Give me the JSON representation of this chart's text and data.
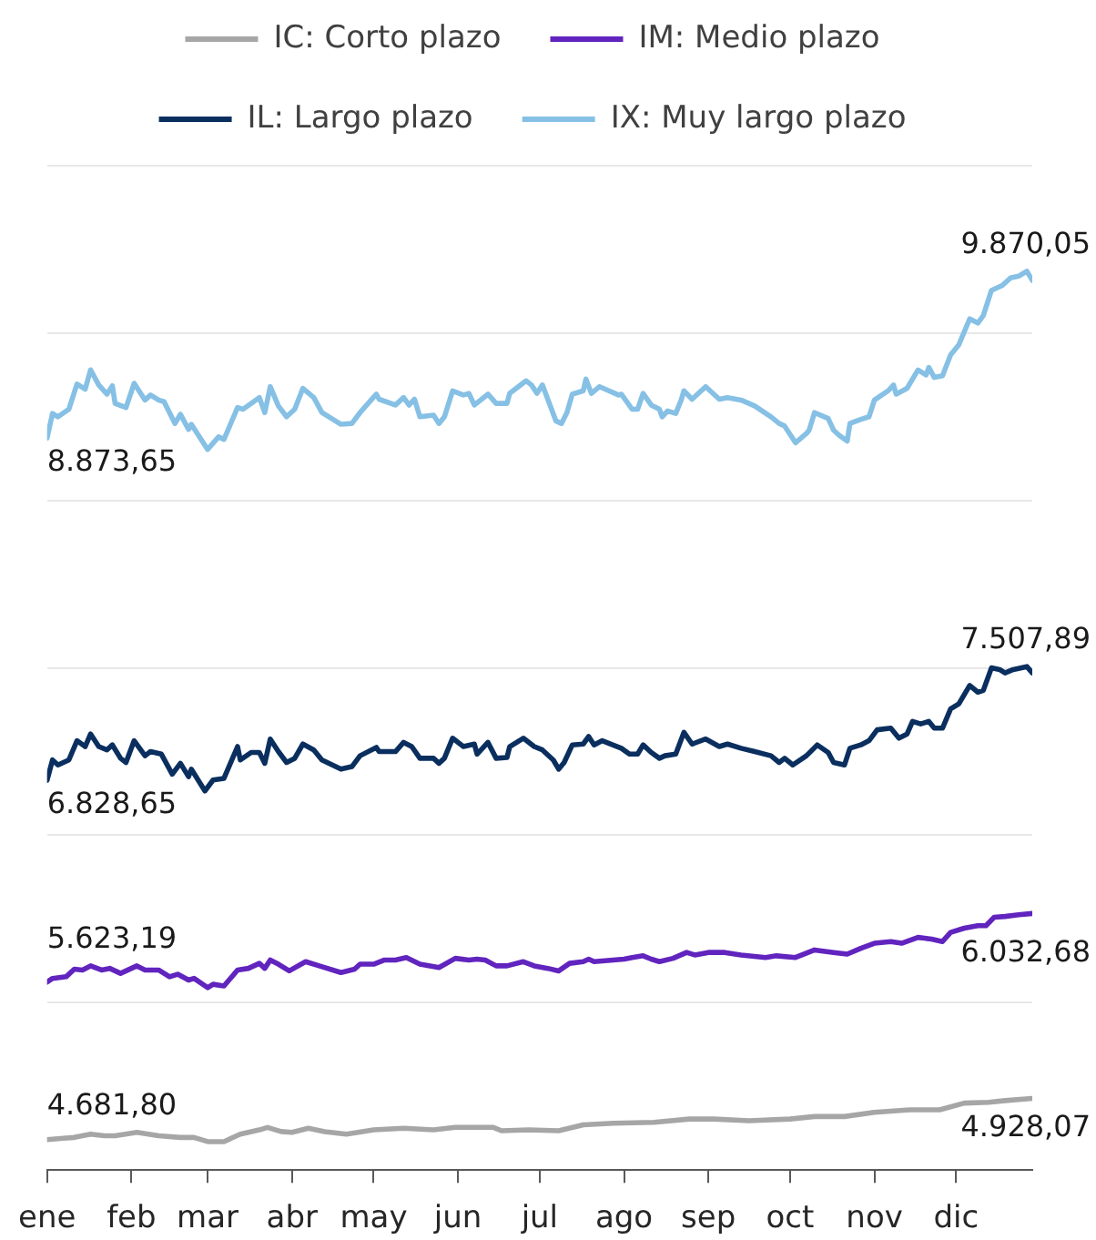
{
  "chart_data": {
    "type": "line",
    "legend": "top",
    "grid": "y",
    "marker": "none",
    "line_style": "solid",
    "tick_labels": "x",
    "xlim": [
      "--01-01",
      "--12-29"
    ],
    "xticks": [
      {
        "value": "--01-01",
        "label": "ene"
      },
      {
        "value": "--02-01",
        "label": "feb"
      },
      {
        "value": "--03-01",
        "label": "mar"
      },
      {
        "value": "--04-01",
        "label": "abr"
      },
      {
        "value": "--05-01",
        "label": "may"
      },
      {
        "value": "--06-01",
        "label": "jun"
      },
      {
        "value": "--07-01",
        "label": "jul"
      },
      {
        "value": "--08-01",
        "label": "ago"
      },
      {
        "value": "--09-01",
        "label": "sep"
      },
      {
        "value": "--10-01",
        "label": "oct"
      },
      {
        "value": "--11-01",
        "label": "nov"
      },
      {
        "value": "--12-01",
        "label": "dic"
      }
    ],
    "ylim": [
      4500,
      10500
    ],
    "yticks": [
      {
        "value": 4500,
        "label": null
      },
      {
        "value": 5500,
        "label": null
      },
      {
        "value": 6500,
        "label": null
      },
      {
        "value": 7500,
        "label": null
      },
      {
        "value": 8500,
        "label": null
      },
      {
        "value": 9500,
        "label": null
      },
      {
        "value": 10500,
        "label": null
      }
    ],
    "series": [
      {
        "name": "IC: Corto plazo",
        "color": "#a6a6a6",
        "x": [
          "--01-01",
          "--01-07",
          "--01-11",
          "--01-17",
          "--01-22",
          "--01-26",
          "--02-03",
          "--02-11",
          "--02-19",
          "--02-24",
          "--03-01",
          "--03-07",
          "--03-13",
          "--03-20",
          "--03-23",
          "--03-28",
          "--04-01",
          "--04-07",
          "--04-13",
          "--04-21",
          "--05-01",
          "--05-12",
          "--05-23",
          "--05-31",
          "--06-14",
          "--06-17",
          "--06-27",
          "--07-08",
          "--07-17",
          "--07-28",
          "--08-12",
          "--08-25",
          "--09-03",
          "--09-16",
          "--10-01",
          "--10-10",
          "--10-21",
          "--11-01",
          "--11-14",
          "--11-25",
          "--12-04",
          "--12-13",
          "--12-19",
          "--12-29"
        ],
        "values": [
          4681.8,
          4690,
          4695,
          4715,
          4705,
          4705,
          4725,
          4705,
          4695,
          4695,
          4670,
          4670,
          4715,
          4740,
          4755,
          4730,
          4725,
          4750,
          4730,
          4715,
          4740,
          4750,
          4740,
          4755,
          4755,
          4735,
          4740,
          4735,
          4770,
          4780,
          4785,
          4805,
          4805,
          4795,
          4805,
          4820,
          4820,
          4845,
          4860,
          4860,
          4900,
          4905,
          4915,
          4928.07
        ],
        "value_labels": [
          "4.681,80",
          null,
          null,
          null,
          null,
          null,
          null,
          null,
          null,
          null,
          null,
          null,
          null,
          null,
          null,
          null,
          null,
          null,
          null,
          null,
          null,
          null,
          null,
          null,
          null,
          null,
          null,
          null,
          null,
          null,
          null,
          null,
          null,
          null,
          null,
          null,
          null,
          null,
          null,
          null,
          null,
          null,
          null,
          "4.928,07"
        ]
      },
      {
        "name": "IM: Medio plazo",
        "color": "#6124be",
        "x": [
          "--01-01",
          "--01-03",
          "--01-08",
          "--01-11",
          "--01-14",
          "--01-17",
          "--01-21",
          "--01-24",
          "--01-28",
          "--02-03",
          "--02-06",
          "--02-11",
          "--02-15",
          "--02-18",
          "--02-22",
          "--02-24",
          "--03-01",
          "--03-03",
          "--03-07",
          "--03-12",
          "--03-16",
          "--03-20",
          "--03-22",
          "--03-24",
          "--03-27",
          "--03-31",
          "--04-06",
          "--04-11",
          "--04-19",
          "--04-24",
          "--04-26",
          "--05-01",
          "--05-05",
          "--05-09",
          "--05-13",
          "--05-18",
          "--05-25",
          "--05-31",
          "--06-05",
          "--06-08",
          "--06-11",
          "--06-15",
          "--06-19",
          "--06-25",
          "--06-29",
          "--07-04",
          "--07-08",
          "--07-12",
          "--07-17",
          "--07-19",
          "--07-21",
          "--07-28",
          "--08-01",
          "--08-04",
          "--08-08",
          "--08-11",
          "--08-14",
          "--08-19",
          "--08-24",
          "--08-27",
          "--09-01",
          "--09-07",
          "--09-13",
          "--09-22",
          "--09-26",
          "--10-03",
          "--10-10",
          "--10-17",
          "--10-22",
          "--10-27",
          "--11-01",
          "--11-07",
          "--11-11",
          "--11-17",
          "--11-22",
          "--11-26",
          "--11-29",
          "--12-04",
          "--12-09",
          "--12-12",
          "--12-15",
          "--12-19",
          "--12-24",
          "--12-29"
        ],
        "values": [
          5623.19,
          5645,
          5655,
          5700,
          5695,
          5720,
          5695,
          5705,
          5675,
          5720,
          5695,
          5695,
          5655,
          5670,
          5635,
          5645,
          5590,
          5610,
          5600,
          5695,
          5705,
          5735,
          5705,
          5755,
          5730,
          5690,
          5745,
          5720,
          5680,
          5700,
          5730,
          5730,
          5755,
          5755,
          5770,
          5730,
          5710,
          5765,
          5755,
          5760,
          5755,
          5720,
          5720,
          5745,
          5720,
          5705,
          5690,
          5735,
          5745,
          5760,
          5745,
          5755,
          5760,
          5770,
          5780,
          5760,
          5745,
          5765,
          5800,
          5785,
          5800,
          5800,
          5785,
          5770,
          5780,
          5770,
          5815,
          5800,
          5790,
          5825,
          5855,
          5865,
          5855,
          5890,
          5880,
          5865,
          5920,
          5945,
          5960,
          5960,
          6010,
          6015,
          6025,
          6032.68
        ],
        "value_labels": [
          "5.623,19",
          null,
          null,
          null,
          null,
          null,
          null,
          null,
          null,
          null,
          null,
          null,
          null,
          null,
          null,
          null,
          null,
          null,
          null,
          null,
          null,
          null,
          null,
          null,
          null,
          null,
          null,
          null,
          null,
          null,
          null,
          null,
          null,
          null,
          null,
          null,
          null,
          null,
          null,
          null,
          null,
          null,
          null,
          null,
          null,
          null,
          null,
          null,
          null,
          null,
          null,
          null,
          null,
          null,
          null,
          null,
          null,
          null,
          null,
          null,
          null,
          null,
          null,
          null,
          null,
          null,
          null,
          null,
          null,
          null,
          null,
          null,
          null,
          null,
          null,
          null,
          null,
          null,
          null,
          null,
          null,
          null,
          null,
          "6.032,68"
        ]
      },
      {
        "name": "IL: Largo plazo",
        "color": "#0a2f5f",
        "x": [
          "--01-01",
          "--01-03",
          "--01-05",
          "--01-09",
          "--01-12",
          "--01-15",
          "--01-17",
          "--01-20",
          "--01-23",
          "--01-25",
          "--01-28",
          "--01-30",
          "--02-02",
          "--02-06",
          "--02-08",
          "--02-12",
          "--02-16",
          "--02-19",
          "--02-22",
          "--02-23",
          "--02-28",
          "--03-03",
          "--03-07",
          "--03-12",
          "--03-13",
          "--03-17",
          "--03-20",
          "--03-22",
          "--03-24",
          "--03-27",
          "--03-30",
          "--04-02",
          "--04-05",
          "--04-09",
          "--04-12",
          "--04-19",
          "--04-23",
          "--04-26",
          "--05-02",
          "--05-03",
          "--05-09",
          "--05-12",
          "--05-15",
          "--05-18",
          "--05-23",
          "--05-25",
          "--05-27",
          "--05-30",
          "--06-03",
          "--06-07",
          "--06-08",
          "--06-12",
          "--06-15",
          "--06-19",
          "--06-20",
          "--06-25",
          "--06-29",
          "--07-02",
          "--07-06",
          "--07-08",
          "--07-10",
          "--07-13",
          "--07-17",
          "--07-19",
          "--07-21",
          "--07-24",
          "--07-31",
          "--08-03",
          "--08-06",
          "--08-08",
          "--08-11",
          "--08-14",
          "--08-16",
          "--08-20",
          "--08-23",
          "--08-26",
          "--08-31",
          "--09-05",
          "--09-08",
          "--09-13",
          "--09-18",
          "--09-24",
          "--09-27",
          "--09-29",
          "--10-02",
          "--10-07",
          "--10-11",
          "--10-15",
          "--10-17",
          "--10-21",
          "--10-23",
          "--10-27",
          "--10-30",
          "--11-02",
          "--11-07",
          "--11-10",
          "--11-13",
          "--11-15",
          "--11-18",
          "--11-21",
          "--11-23",
          "--11-26",
          "--11-29",
          "--12-02",
          "--12-06",
          "--12-09",
          "--12-11",
          "--12-14",
          "--12-17",
          "--12-19",
          "--12-22",
          "--12-27",
          "--12-29"
        ],
        "values": [
          6828.65,
          6950,
          6920,
          6950,
          7065,
          7030,
          7105,
          7030,
          7010,
          7040,
          6960,
          6935,
          7065,
          6975,
          7000,
          6985,
          6865,
          6930,
          6850,
          6895,
          6765,
          6830,
          6840,
          7030,
          6950,
          6995,
          6995,
          6930,
          7075,
          7000,
          6935,
          6960,
          7045,
          7010,
          6950,
          6895,
          6910,
          6975,
          7025,
          7000,
          7000,
          7055,
          7030,
          6960,
          6960,
          6930,
          6960,
          7080,
          7030,
          7045,
          6985,
          7055,
          6960,
          6965,
          7030,
          7080,
          7030,
          7010,
          6950,
          6895,
          6935,
          7040,
          7045,
          7090,
          7040,
          7065,
          7020,
          6985,
          6985,
          7040,
          6995,
          6960,
          6975,
          6985,
          7115,
          7045,
          7075,
          7030,
          7045,
          7020,
          7000,
          6975,
          6935,
          6960,
          6920,
          6975,
          7040,
          6995,
          6935,
          6920,
          7020,
          7040,
          7065,
          7130,
          7140,
          7080,
          7105,
          7180,
          7165,
          7180,
          7140,
          7140,
          7255,
          7285,
          7395,
          7355,
          7365,
          7500,
          7490,
          7470,
          7490,
          7507.89,
          7470
        ],
        "value_labels": [
          "6.828,65",
          null,
          null,
          null,
          null,
          null,
          null,
          null,
          null,
          null,
          null,
          null,
          null,
          null,
          null,
          null,
          null,
          null,
          null,
          null,
          null,
          null,
          null,
          null,
          null,
          null,
          null,
          null,
          null,
          null,
          null,
          null,
          null,
          null,
          null,
          null,
          null,
          null,
          null,
          null,
          null,
          null,
          null,
          null,
          null,
          null,
          null,
          null,
          null,
          null,
          null,
          null,
          null,
          null,
          null,
          null,
          null,
          null,
          null,
          null,
          null,
          null,
          null,
          null,
          null,
          null,
          null,
          null,
          null,
          null,
          null,
          null,
          null,
          null,
          null,
          null,
          null,
          null,
          null,
          null,
          null,
          null,
          null,
          null,
          null,
          null,
          null,
          null,
          null,
          null,
          null,
          null,
          null,
          null,
          null,
          null,
          null,
          null,
          null,
          null,
          null,
          null,
          null,
          null,
          null,
          null,
          null,
          null,
          null,
          null,
          null,
          "7.507,89",
          null
        ]
      },
      {
        "name": "IX: Muy largo plazo",
        "color": "#86c0e5",
        "x": [
          "--01-01",
          "--01-03",
          "--01-05",
          "--01-09",
          "--01-12",
          "--01-15",
          "--01-17",
          "--01-20",
          "--01-23",
          "--01-25",
          "--01-26",
          "--01-30",
          "--02-02",
          "--02-06",
          "--02-08",
          "--02-11",
          "--02-13",
          "--02-17",
          "--02-19",
          "--02-22",
          "--02-23",
          "--03-01",
          "--03-05",
          "--03-07",
          "--03-12",
          "--03-14",
          "--03-20",
          "--03-22",
          "--03-24",
          "--03-27",
          "--03-30",
          "--04-02",
          "--04-05",
          "--04-09",
          "--04-12",
          "--04-19",
          "--04-23",
          "--04-26",
          "--05-02",
          "--05-03",
          "--05-09",
          "--05-12",
          "--05-14",
          "--05-16",
          "--05-18",
          "--05-23",
          "--05-25",
          "--05-27",
          "--05-30",
          "--06-03",
          "--06-05",
          "--06-07",
          "--06-12",
          "--06-15",
          "--06-19",
          "--06-20",
          "--06-26",
          "--06-28",
          "--06-30",
          "--07-02",
          "--07-07",
          "--07-09",
          "--07-11",
          "--07-13",
          "--07-17",
          "--07-18",
          "--07-20",
          "--07-23",
          "--07-30",
          "--07-31",
          "--08-04",
          "--08-06",
          "--08-08",
          "--08-11",
          "--08-14",
          "--08-15",
          "--08-17",
          "--08-20",
          "--08-22",
          "--08-23",
          "--08-26",
          "--08-31",
          "--09-05",
          "--09-08",
          "--09-13",
          "--09-18",
          "--09-24",
          "--09-27",
          "--09-29",
          "--10-03",
          "--10-07",
          "--10-08",
          "--10-10",
          "--10-15",
          "--10-17",
          "--10-19",
          "--10-22",
          "--10-23",
          "--10-27",
          "--10-30",
          "--11-01",
          "--11-06",
          "--11-08",
          "--11-09",
          "--11-13",
          "--11-17",
          "--11-20",
          "--11-21",
          "--11-23",
          "--11-26",
          "--11-29",
          "--12-02",
          "--12-06",
          "--12-09",
          "--12-11",
          "--12-14",
          "--12-18",
          "--12-21",
          "--12-24",
          "--12-27",
          "--12-29"
        ],
        "values": [
          8873.65,
          9020,
          9000,
          9045,
          9195,
          9165,
          9280,
          9190,
          9135,
          9185,
          9080,
          9055,
          9200,
          9100,
          9130,
          9100,
          9090,
          8960,
          9015,
          8925,
          8955,
          8805,
          8880,
          8865,
          9055,
          9045,
          9115,
          9025,
          9180,
          9065,
          9000,
          9045,
          9170,
          9115,
          9025,
          8955,
          8960,
          9025,
          9135,
          9105,
          9070,
          9115,
          9070,
          9105,
          9000,
          9010,
          8960,
          9000,
          9155,
          9130,
          9140,
          9070,
          9135,
          9080,
          9080,
          9140,
          9215,
          9190,
          9140,
          9190,
          8975,
          8960,
          9025,
          9135,
          9155,
          9225,
          9140,
          9180,
          9130,
          9135,
          9045,
          9045,
          9140,
          9070,
          9045,
          9000,
          9035,
          9020,
          9100,
          9155,
          9105,
          9180,
          9105,
          9115,
          9100,
          9065,
          9000,
          8960,
          8945,
          8845,
          8900,
          8920,
          9025,
          8990,
          8920,
          8890,
          8855,
          8960,
          8985,
          9000,
          9100,
          9155,
          9190,
          9135,
          9170,
          9280,
          9250,
          9295,
          9235,
          9245,
          9370,
          9430,
          9585,
          9560,
          9605,
          9755,
          9785,
          9830,
          9840,
          9870.05,
          9815
        ],
        "value_labels": [
          "8.873,65",
          null,
          null,
          null,
          null,
          null,
          null,
          null,
          null,
          null,
          null,
          null,
          null,
          null,
          null,
          null,
          null,
          null,
          null,
          null,
          null,
          null,
          null,
          null,
          null,
          null,
          null,
          null,
          null,
          null,
          null,
          null,
          null,
          null,
          null,
          null,
          null,
          null,
          null,
          null,
          null,
          null,
          null,
          null,
          null,
          null,
          null,
          null,
          null,
          null,
          null,
          null,
          null,
          null,
          null,
          null,
          null,
          null,
          null,
          null,
          null,
          null,
          null,
          null,
          null,
          null,
          null,
          null,
          null,
          null,
          null,
          null,
          null,
          null,
          null,
          null,
          null,
          null,
          null,
          null,
          null,
          null,
          null,
          null,
          null,
          null,
          null,
          null,
          null,
          null,
          null,
          null,
          null,
          null,
          null,
          null,
          null,
          null,
          null,
          null,
          null,
          null,
          null,
          null,
          null,
          null,
          null,
          null,
          null,
          null,
          null,
          null,
          null,
          null,
          null,
          null,
          null,
          null,
          null,
          "9.870,05",
          null
        ]
      }
    ]
  }
}
